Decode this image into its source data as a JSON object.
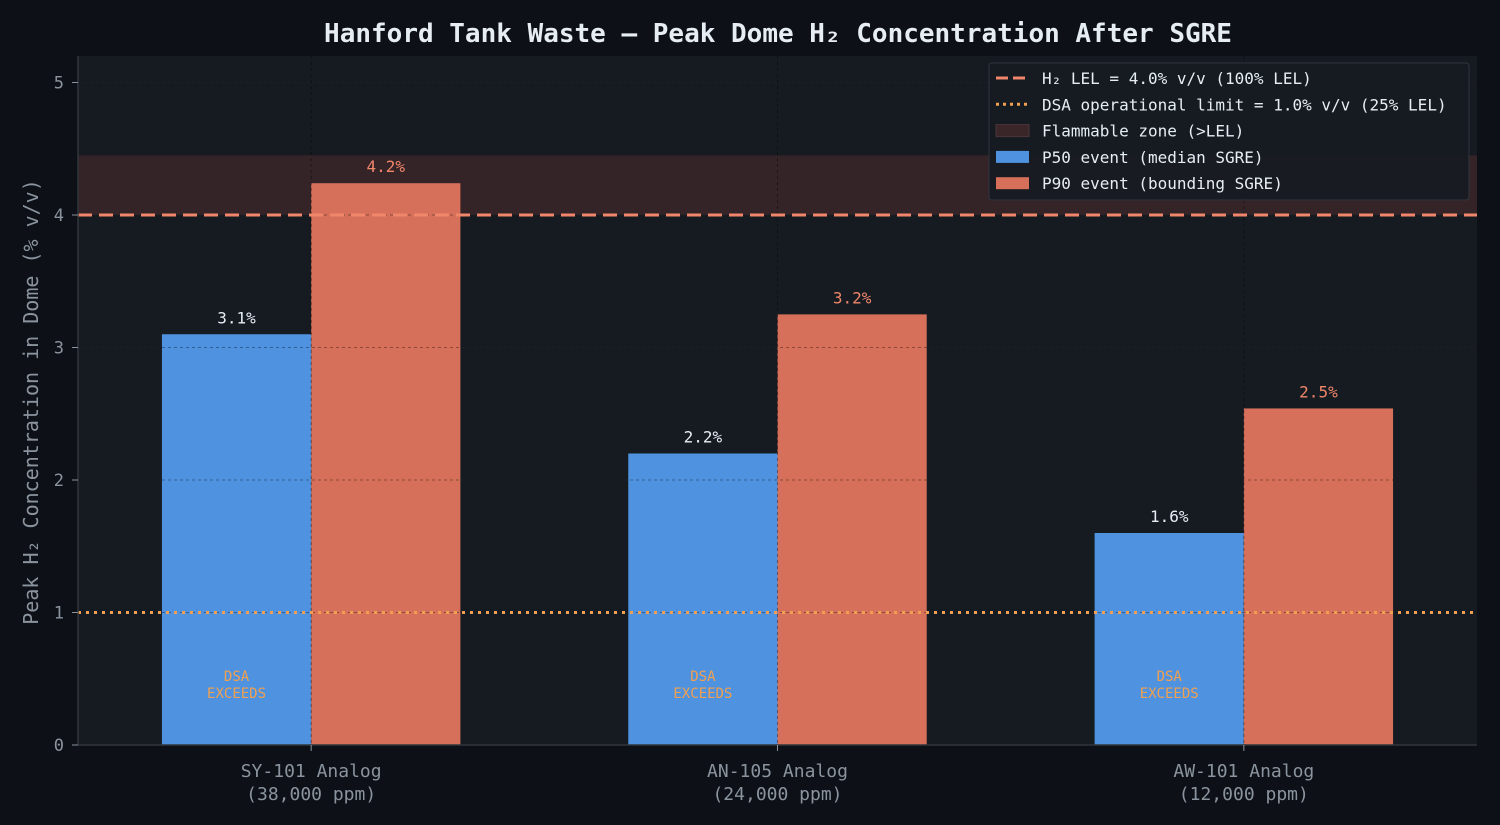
{
  "chart_data": {
    "type": "bar",
    "title": "Hanford Tank Waste — Peak Dome H₂ Concentration After SGRE",
    "ylabel": "Peak H₂ Concentration in Dome (% v/v)",
    "xlabel": "",
    "ylim": [
      0,
      5.2
    ],
    "yticks": [
      0,
      1,
      2,
      3,
      4,
      5
    ],
    "grid": true,
    "legend_position": "top-right",
    "categories": [
      [
        "SY-101 Analog",
        "(38,000 ppm)"
      ],
      [
        "AN-105 Analog",
        "(24,000 ppm)"
      ],
      [
        "AW-101 Analog",
        "(12,000 ppm)"
      ]
    ],
    "series": [
      {
        "name": "P50 event (median SGRE)",
        "color": "#4f93e0",
        "label_color": "#e6edf3",
        "values": [
          3.1,
          2.2,
          1.6
        ],
        "labels": [
          "3.1%",
          "2.2%",
          "1.6%"
        ]
      },
      {
        "name": "P90 event (bounding SGRE)",
        "color": "#d6705a",
        "label_color": "#f0866a",
        "values": [
          4.24,
          3.25,
          2.54
        ],
        "labels": [
          "4.2%",
          "3.2%",
          "2.5%"
        ]
      }
    ],
    "reference_lines": [
      {
        "name": "H₂ LEL = 4.0% v/v (100% LEL)",
        "value": 4.0,
        "color": "#f0866a",
        "style": "dashed"
      },
      {
        "name": "DSA operational limit = 1.0% v/v (25% LEL)",
        "value": 1.0,
        "color": "#f0a050",
        "style": "dotted"
      }
    ],
    "shaded_band": {
      "name": "Flammable zone (>LEL)",
      "from": 4.0,
      "to": 4.45,
      "color": "#3a2528"
    },
    "annotations": [
      {
        "category_index": 0,
        "lines": [
          "DSA",
          "EXCEEDS"
        ],
        "color": "#f0a050"
      },
      {
        "category_index": 1,
        "lines": [
          "DSA",
          "EXCEEDS"
        ],
        "color": "#f0a050"
      },
      {
        "category_index": 2,
        "lines": [
          "DSA",
          "EXCEEDS"
        ],
        "color": "#f0a050"
      }
    ],
    "colors": {
      "page_background": "#0d1117",
      "plot_background": "#161b22",
      "axis": "#30363d",
      "grid": "#2b3038"
    }
  }
}
